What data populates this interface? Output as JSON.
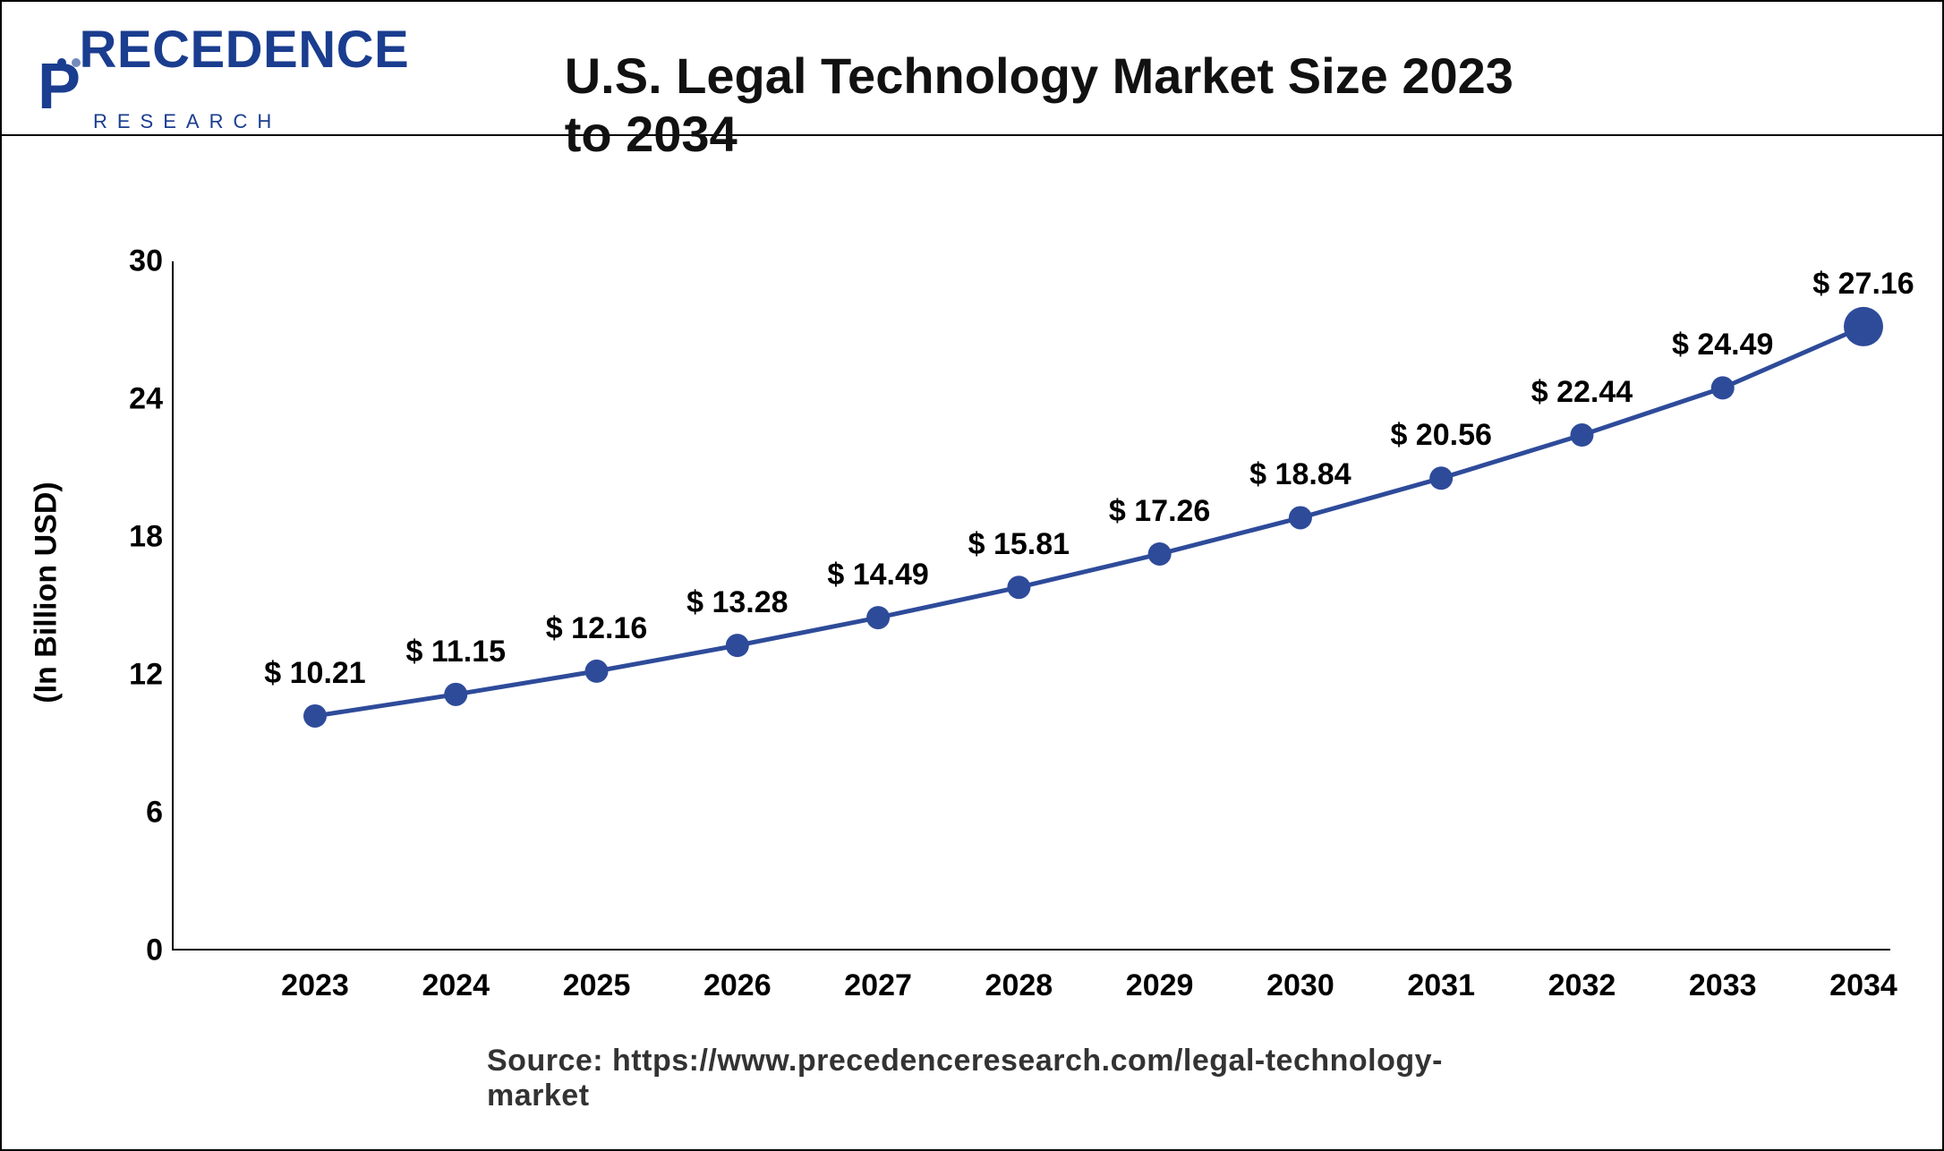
{
  "logo": {
    "main": "RECEDENCE",
    "sub": "RESEARCH"
  },
  "title": "U.S. Legal Technology Market Size 2023 to 2034",
  "source": "Source: https://www.precedenceresearch.com/legal-technology-market",
  "chart": {
    "type": "line",
    "y_axis_title": "(In Billion USD)",
    "ylim": [
      0,
      30
    ],
    "ytick_step": 6,
    "yticks": [
      0,
      6,
      12,
      18,
      24,
      30
    ],
    "line_color": "#2e4b9a",
    "line_width": 5,
    "marker_color": "#2e4b9a",
    "marker_radius": 13,
    "last_marker_radius": 22,
    "background_color": "#ffffff",
    "label_fontsize": 34,
    "title_fontsize": 56,
    "categories": [
      "2023",
      "2024",
      "2025",
      "2026",
      "2027",
      "2028",
      "2029",
      "2030",
      "2031",
      "2032",
      "2033",
      "2034"
    ],
    "values": [
      10.21,
      11.15,
      12.16,
      13.28,
      14.49,
      15.81,
      17.26,
      18.84,
      20.56,
      22.44,
      24.49,
      27.16
    ],
    "value_labels": [
      "$ 10.21",
      "$ 11.15",
      "$ 12.16",
      "$ 13.28",
      "$ 14.49",
      "$ 15.81",
      "$ 17.26",
      "$ 18.84",
      "$ 20.56",
      "$ 22.44",
      "$ 24.49",
      "$ 27.16"
    ]
  }
}
